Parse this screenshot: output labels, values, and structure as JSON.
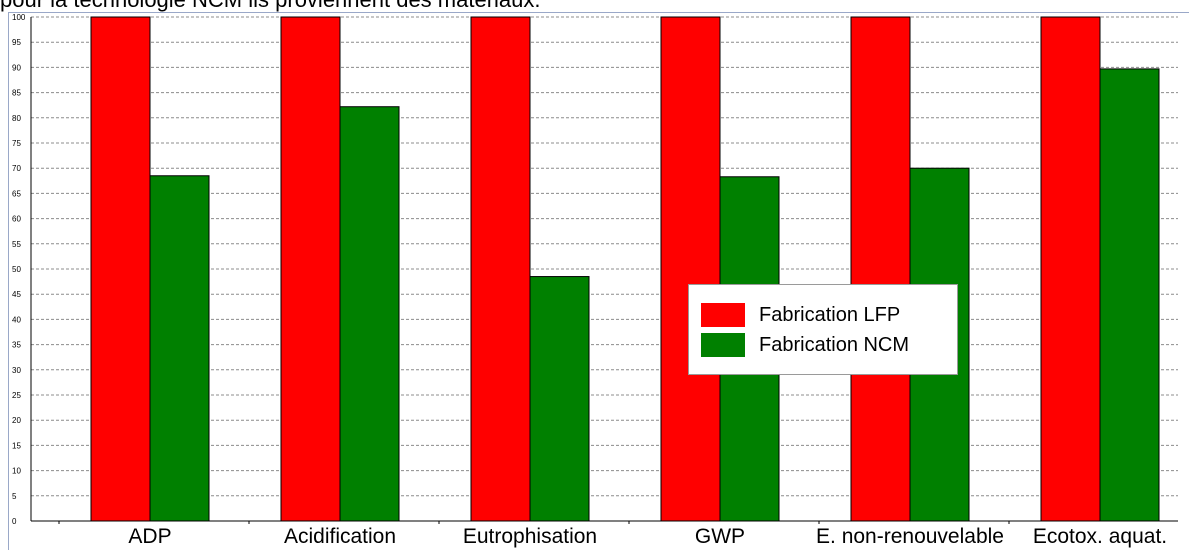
{
  "caption": "pour la technologie NCM ils proviennent des matériaux.",
  "colors": {
    "lfp": "#ff0000",
    "ncm": "#008000"
  },
  "chart_data": {
    "type": "bar",
    "categories": [
      "ADP",
      "Acidification",
      "Eutrophisation",
      "GWP",
      "E. non-renouvelable",
      "Ecotox. aquat."
    ],
    "series": [
      {
        "name": "Fabrication LFP",
        "values": [
          100,
          100,
          100,
          100,
          100,
          100
        ]
      },
      {
        "name": "Fabrication NCM",
        "values": [
          68.5,
          82.2,
          48.5,
          68.3,
          70,
          89.7
        ]
      }
    ],
    "ylim": [
      0,
      100
    ],
    "yticks": [
      0,
      5,
      10,
      15,
      20,
      25,
      30,
      35,
      40,
      45,
      50,
      55,
      60,
      65,
      70,
      75,
      80,
      85,
      90,
      95,
      100
    ],
    "grid": true,
    "legend_position": "center-right"
  }
}
